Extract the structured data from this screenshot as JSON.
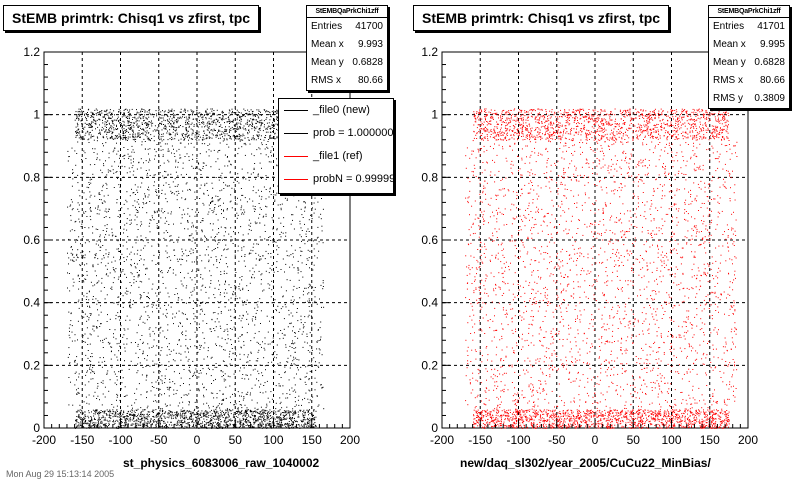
{
  "chart_data": [
    {
      "type": "scatter",
      "title": "StEMB primtrk: Chisq1 vs zfirst, tpc",
      "xlabel": "st_physics_6083006_raw_1040002",
      "ylabel": "",
      "xlim": [
        -200,
        200
      ],
      "ylim": [
        0,
        1.2
      ],
      "x_ticks": [
        "-200",
        "-150",
        "-100",
        "-50",
        "0",
        "50",
        "100",
        "150",
        "200"
      ],
      "y_ticks": [
        "0",
        "0.2",
        "0.4",
        "0.6",
        "0.8",
        "1",
        "1.2"
      ],
      "grid": true,
      "series": [
        {
          "name": "_file0 (new)",
          "color": "#000000",
          "x_range": [
            -170,
            165
          ],
          "dense_bands": [
            [
              0.92,
              1.02
            ],
            [
              0.0,
              0.06
            ]
          ]
        }
      ],
      "stats": {
        "header": "StEMBQaPrkChi1zff",
        "rows": [
          {
            "label": "Entries",
            "value": "41700"
          },
          {
            "label": "Mean x",
            "value": "9.993"
          },
          {
            "label": "Mean y",
            "value": "0.6828"
          },
          {
            "label": "RMS x",
            "value": "80.66"
          }
        ]
      },
      "legend": {
        "placement": "top-right",
        "entries": [
          {
            "text": "_file0 (new)",
            "color": "#000000"
          },
          {
            "text": "prob = 1.000000",
            "color": "#000000"
          },
          {
            "text": "_file1 (ref)",
            "color": "#ff0000"
          },
          {
            "text": "probN = 0.999998",
            "color": "#ff0000"
          }
        ]
      }
    },
    {
      "type": "scatter",
      "title": "StEMB primtrk: Chisq1 vs zfirst, tpc",
      "xlabel": "new/daq_sl302/year_2005/CuCu22_MinBias/",
      "ylabel": "",
      "xlim": [
        -200,
        200
      ],
      "ylim": [
        0,
        1.2
      ],
      "x_ticks": [
        "-200",
        "-150",
        "-100",
        "-50",
        "0",
        "50",
        "100",
        "150",
        "200"
      ],
      "y_ticks": [
        "0",
        "0.2",
        "0.4",
        "0.6",
        "0.8",
        "1",
        "1.2"
      ],
      "grid": true,
      "series": [
        {
          "name": "_file1 (ref)",
          "color": "#ff0000",
          "x_range": [
            -170,
            185
          ],
          "dense_bands": [
            [
              0.92,
              1.02
            ],
            [
              0.0,
              0.06
            ]
          ]
        }
      ],
      "stats": {
        "header": "StEMBQaPrkChi1zff",
        "rows": [
          {
            "label": "Entries",
            "value": "41701"
          },
          {
            "label": "Mean x",
            "value": "9.995"
          },
          {
            "label": "Mean y",
            "value": "0.6828"
          },
          {
            "label": "RMS x",
            "value": "80.66"
          },
          {
            "label": "RMS y",
            "value": "0.3809"
          }
        ]
      }
    }
  ],
  "footer": "Mon Aug 29 15:13:14 2005"
}
